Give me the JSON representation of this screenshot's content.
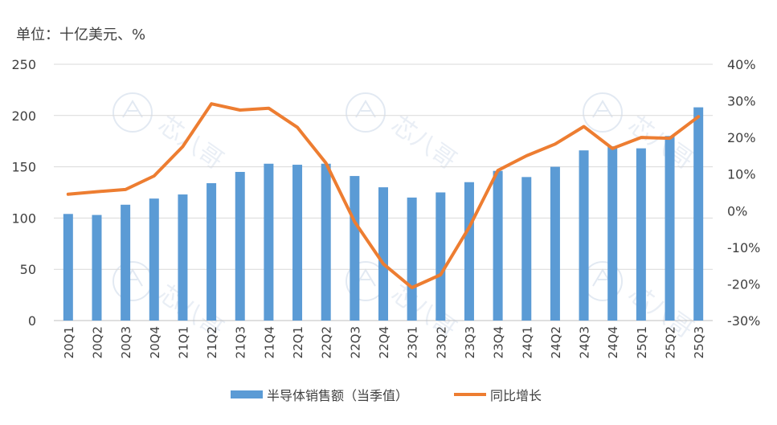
{
  "chart_data": {
    "type": "bar+line",
    "unit_label": "单位：十亿美元、%",
    "categories": [
      "20Q1",
      "20Q2",
      "20Q3",
      "20Q4",
      "21Q1",
      "21Q2",
      "21Q3",
      "21Q4",
      "22Q1",
      "22Q2",
      "22Q3",
      "22Q4",
      "23Q1",
      "23Q2",
      "23Q3",
      "23Q4",
      "24Q1",
      "24Q2",
      "24Q3",
      "24Q4",
      "25Q1",
      "25Q2",
      "25Q3"
    ],
    "series": [
      {
        "name": "半导体销售额（当季值）",
        "type": "bar",
        "axis": "left",
        "color": "#5B9BD5",
        "values": [
          104,
          103,
          113,
          119,
          123,
          134,
          145,
          153,
          152,
          153,
          141,
          130,
          120,
          125,
          135,
          146,
          140,
          150,
          166,
          170,
          168,
          180,
          208
        ]
      },
      {
        "name": "同比增长",
        "type": "line",
        "axis": "right",
        "color": "#ED7D31",
        "values": [
          4.5,
          5.2,
          5.8,
          9.5,
          17.5,
          29.2,
          27.5,
          28,
          22.8,
          13,
          -3,
          -14.5,
          -21,
          -17.5,
          -4.5,
          11,
          15,
          18.2,
          23,
          17,
          20,
          19.8,
          25.7
        ]
      }
    ],
    "left_axis": {
      "min": 0,
      "max": 250,
      "ticks": [
        0,
        50,
        100,
        150,
        200,
        250
      ],
      "tick_labels": [
        "0",
        "50",
        "100",
        "150",
        "200",
        "250"
      ]
    },
    "right_axis": {
      "min": -30,
      "max": 40,
      "ticks": [
        -30,
        -20,
        -10,
        0,
        10,
        20,
        30,
        40
      ],
      "tick_labels": [
        "-30%",
        "-20%",
        "-10%",
        "0%",
        "10%",
        "20%",
        "30%",
        "40%"
      ]
    },
    "legend": {
      "placement": "bottom",
      "items": [
        "半导体销售额（当季值）",
        "同比增长"
      ]
    },
    "watermark": "芯八哥"
  }
}
